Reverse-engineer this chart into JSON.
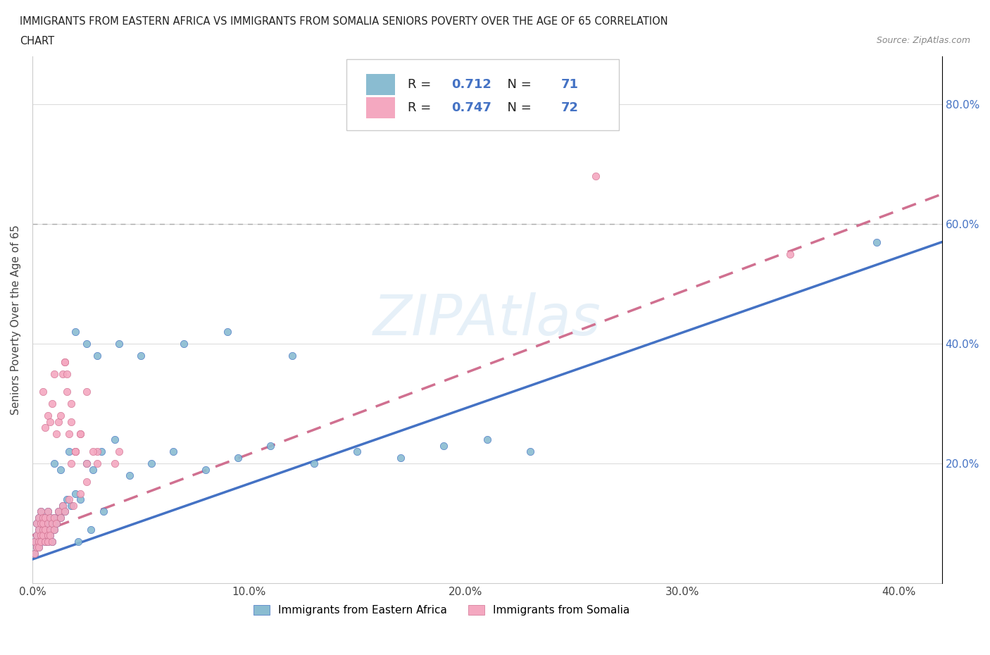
{
  "title_line1": "IMMIGRANTS FROM EASTERN AFRICA VS IMMIGRANTS FROM SOMALIA SENIORS POVERTY OVER THE AGE OF 65 CORRELATION",
  "title_line2": "CHART",
  "source": "Source: ZipAtlas.com",
  "ylabel": "Seniors Poverty Over the Age of 65",
  "xlim": [
    0.0,
    0.42
  ],
  "ylim": [
    0.0,
    0.88
  ],
  "xtick_labels": [
    "0.0%",
    "10.0%",
    "20.0%",
    "30.0%",
    "40.0%"
  ],
  "xtick_vals": [
    0.0,
    0.1,
    0.2,
    0.3,
    0.4
  ],
  "ytick_labels": [
    "20.0%",
    "40.0%",
    "60.0%",
    "80.0%"
  ],
  "ytick_vals": [
    0.2,
    0.4,
    0.6,
    0.8
  ],
  "series1_label": "Immigrants from Eastern Africa",
  "series1_color": "#8abcd1",
  "series1_line_color": "#4472c4",
  "series1_R": 0.712,
  "series1_N": 71,
  "series2_label": "Immigrants from Somalia",
  "series2_color": "#f4a8c0",
  "series2_line_color": "#d07090",
  "series2_R": 0.747,
  "series2_N": 72,
  "grid_color": "#dddddd",
  "background_color": "#ffffff",
  "series1_x": [
    0.001,
    0.001,
    0.002,
    0.002,
    0.002,
    0.003,
    0.003,
    0.003,
    0.003,
    0.004,
    0.004,
    0.004,
    0.004,
    0.005,
    0.005,
    0.005,
    0.005,
    0.006,
    0.006,
    0.006,
    0.007,
    0.007,
    0.007,
    0.007,
    0.008,
    0.008,
    0.008,
    0.009,
    0.009,
    0.01,
    0.01,
    0.011,
    0.012,
    0.013,
    0.014,
    0.015,
    0.016,
    0.018,
    0.02,
    0.022,
    0.025,
    0.028,
    0.032,
    0.038,
    0.045,
    0.055,
    0.065,
    0.08,
    0.095,
    0.11,
    0.13,
    0.15,
    0.17,
    0.19,
    0.21,
    0.23,
    0.02,
    0.025,
    0.03,
    0.04,
    0.05,
    0.07,
    0.09,
    0.12,
    0.01,
    0.013,
    0.017,
    0.021,
    0.027,
    0.033,
    0.39
  ],
  "series1_y": [
    0.05,
    0.07,
    0.06,
    0.08,
    0.1,
    0.07,
    0.09,
    0.11,
    0.06,
    0.08,
    0.1,
    0.12,
    0.07,
    0.09,
    0.11,
    0.08,
    0.1,
    0.07,
    0.09,
    0.11,
    0.08,
    0.1,
    0.12,
    0.07,
    0.09,
    0.11,
    0.08,
    0.1,
    0.07,
    0.09,
    0.11,
    0.1,
    0.12,
    0.11,
    0.13,
    0.12,
    0.14,
    0.13,
    0.15,
    0.14,
    0.2,
    0.19,
    0.22,
    0.24,
    0.18,
    0.2,
    0.22,
    0.19,
    0.21,
    0.23,
    0.2,
    0.22,
    0.21,
    0.23,
    0.24,
    0.22,
    0.42,
    0.4,
    0.38,
    0.4,
    0.38,
    0.4,
    0.42,
    0.38,
    0.2,
    0.19,
    0.22,
    0.07,
    0.09,
    0.12,
    0.57
  ],
  "series2_x": [
    0.001,
    0.001,
    0.002,
    0.002,
    0.002,
    0.003,
    0.003,
    0.003,
    0.003,
    0.004,
    0.004,
    0.004,
    0.004,
    0.005,
    0.005,
    0.005,
    0.005,
    0.006,
    0.006,
    0.006,
    0.007,
    0.007,
    0.007,
    0.007,
    0.008,
    0.008,
    0.008,
    0.009,
    0.009,
    0.01,
    0.01,
    0.011,
    0.012,
    0.013,
    0.014,
    0.015,
    0.017,
    0.019,
    0.022,
    0.025,
    0.005,
    0.006,
    0.007,
    0.008,
    0.009,
    0.01,
    0.011,
    0.012,
    0.013,
    0.014,
    0.015,
    0.016,
    0.018,
    0.02,
    0.015,
    0.016,
    0.017,
    0.018,
    0.02,
    0.022,
    0.025,
    0.03,
    0.04,
    0.018,
    0.02,
    0.022,
    0.025,
    0.028,
    0.03,
    0.038,
    0.26,
    0.35
  ],
  "series2_y": [
    0.05,
    0.07,
    0.06,
    0.08,
    0.1,
    0.07,
    0.09,
    0.11,
    0.06,
    0.08,
    0.1,
    0.12,
    0.07,
    0.09,
    0.11,
    0.08,
    0.1,
    0.07,
    0.09,
    0.11,
    0.08,
    0.1,
    0.12,
    0.07,
    0.09,
    0.11,
    0.08,
    0.1,
    0.07,
    0.09,
    0.11,
    0.1,
    0.12,
    0.11,
    0.13,
    0.12,
    0.14,
    0.13,
    0.15,
    0.17,
    0.32,
    0.26,
    0.28,
    0.27,
    0.3,
    0.35,
    0.25,
    0.27,
    0.28,
    0.35,
    0.37,
    0.32,
    0.3,
    0.22,
    0.37,
    0.35,
    0.25,
    0.27,
    0.22,
    0.25,
    0.32,
    0.22,
    0.22,
    0.2,
    0.22,
    0.25,
    0.2,
    0.22,
    0.2,
    0.2,
    0.68,
    0.55
  ]
}
